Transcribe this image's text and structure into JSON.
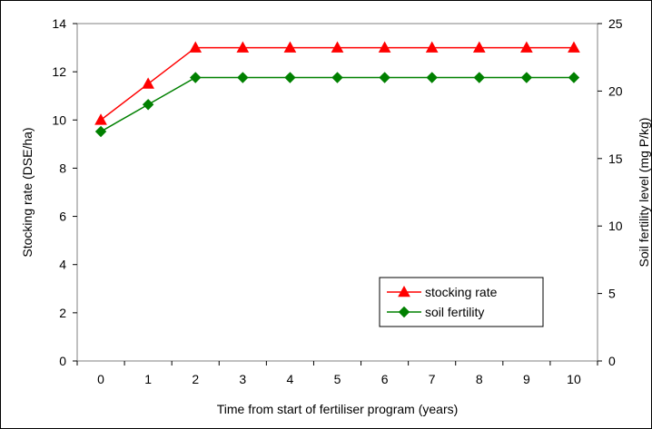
{
  "chart_data": {
    "type": "line",
    "title": "",
    "xlabel": "Time from start of fertiliser program (years)",
    "ylabel": "Stocking rate (DSE/ha)",
    "y2label": "Soil fertility level (mg P/kg)",
    "x": [
      0,
      1,
      2,
      3,
      4,
      5,
      6,
      7,
      8,
      9,
      10
    ],
    "xlim": [
      0,
      10
    ],
    "ylim": [
      0,
      14
    ],
    "y2lim": [
      0,
      25
    ],
    "yticks": [
      0,
      2,
      4,
      6,
      8,
      10,
      12,
      14
    ],
    "y2ticks": [
      0,
      5,
      10,
      15,
      20,
      25
    ],
    "grid": false,
    "legend_position": "bottom-right",
    "series": [
      {
        "name": "stocking rate",
        "axis": "left",
        "color": "#ff0000",
        "marker": "triangle",
        "values": [
          10,
          11.5,
          13,
          13,
          13,
          13,
          13,
          13,
          13,
          13,
          13
        ]
      },
      {
        "name": "soil fertility",
        "axis": "right",
        "color": "#008000",
        "marker": "diamond",
        "values": [
          17,
          19,
          21,
          21,
          21,
          21,
          21,
          21,
          21,
          21,
          21
        ]
      }
    ]
  }
}
